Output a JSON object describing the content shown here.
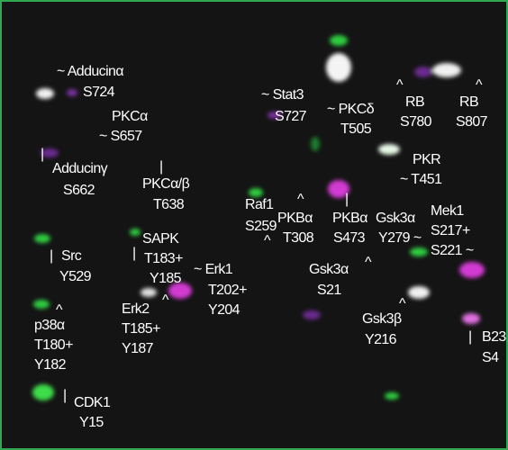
{
  "labels": [
    [
      "~ Adducinα",
      "S724"
    ],
    [
      "PKCα",
      "~ S657"
    ],
    [
      "|",
      "Adducinγ",
      "S662"
    ],
    [
      "|",
      "PKCα/β",
      "T638"
    ],
    [
      "~ Stat3",
      "S727"
    ],
    [
      "~ PKCδ",
      "T505"
    ],
    [
      "^",
      "RB",
      "S780"
    ],
    [
      "^",
      "RB",
      "S807"
    ],
    [
      "PKR",
      "~ T451"
    ],
    [
      "Raf1",
      "S259",
      "^"
    ],
    [
      "^",
      "PKBα",
      "T308"
    ],
    [
      "|",
      "PKBα",
      "S473"
    ],
    [
      "Gsk3α",
      "Y279 ~"
    ],
    [
      "Mek1",
      "S217+",
      "S221 ~"
    ],
    [
      "|",
      "Src",
      "Y529"
    ],
    [
      "|",
      "SAPK",
      "T183+",
      "Y185"
    ],
    [
      "~ Erk1",
      "T202+",
      "Y204"
    ],
    [
      "^",
      "Gsk3α",
      "S21"
    ],
    [
      "^",
      "Erk2",
      "T185+",
      "Y187"
    ],
    [
      "^",
      "p38α",
      "T180+",
      "Y182"
    ],
    [
      "^",
      "Gsk3β",
      "Y216"
    ],
    [
      "|",
      "B23",
      "S4"
    ],
    [
      "|",
      "CDK1",
      "Y15"
    ]
  ]
}
